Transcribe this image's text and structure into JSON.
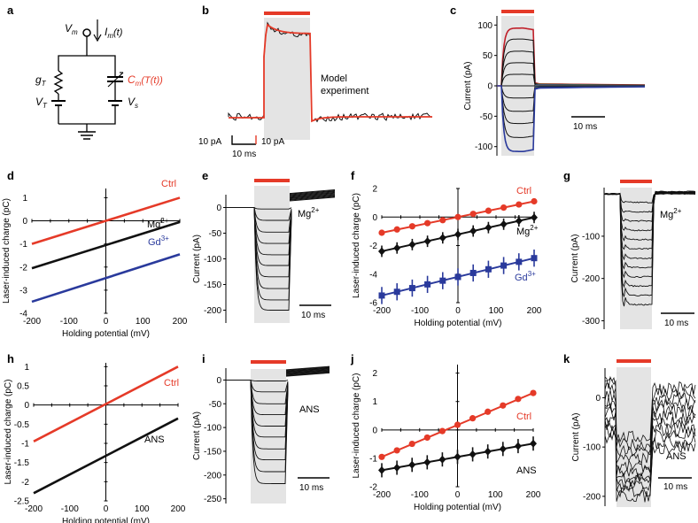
{
  "colors": {
    "ctrl": "#e53a28",
    "mg": "#111111",
    "gd": "#2a3a9c",
    "model": "#e53a28",
    "experiment": "#111111",
    "shade": "#e4e4e4",
    "laser_bar": "#e53a28"
  },
  "panels": {
    "a": {
      "label": "a",
      "Vm_main": "V",
      "Vm_sub": "m",
      "Im_main": "I",
      "Im_sub": "m",
      "Im_arg": "(t)",
      "gT_main": "g",
      "gT_sub": "T",
      "Cm_main": "C",
      "Cm_sub": "m",
      "Cm_arg": "(T(t))",
      "VT_main": "V",
      "VT_sub": "T",
      "Vs_main": "V",
      "Vs_sub": "s"
    },
    "b": {
      "label": "b",
      "legend_model": "Model",
      "legend_experiment": "experiment",
      "scale_black": "10 pA",
      "scale_red": "10 pA",
      "scale_time": "10 ms"
    },
    "c": {
      "label": "c",
      "scale_time": "10 ms"
    },
    "d": {
      "label": "d",
      "tag_ctrl": "Ctrl",
      "tag_mg": "Mg",
      "tag_mg_sup": "2+",
      "tag_gd": "Gd",
      "tag_gd_sup": "3+"
    },
    "e": {
      "label": "e",
      "tag": "Mg",
      "tag_sup": "2+",
      "scale_time": "10 ms"
    },
    "f": {
      "label": "f",
      "tag_ctrl": "Ctrl",
      "tag_mg": "Mg",
      "tag_mg_sup": "2+",
      "tag_gd": "Gd",
      "tag_gd_sup": "3+"
    },
    "g": {
      "label": "g",
      "tag": "Mg",
      "tag_sup": "2+",
      "scale_time": "10 ms"
    },
    "h": {
      "label": "h",
      "tag_ctrl": "Ctrl",
      "tag_ans": "ANS"
    },
    "i": {
      "label": "i",
      "tag": "ANS",
      "scale_time": "10 ms"
    },
    "j": {
      "label": "j",
      "tag_ctrl": "Ctrl",
      "tag_ans": "ANS"
    },
    "k": {
      "label": "k",
      "tag": "ANS",
      "scale_time": "10 ms"
    }
  },
  "chart_data": [
    {
      "id": "c",
      "type": "line",
      "ylabel": "Current (pA)",
      "yticks": [
        100,
        50,
        0,
        -50,
        -100
      ],
      "ylim": [
        -115,
        115
      ],
      "plateau_levels": [
        95,
        77,
        57,
        38,
        19,
        0,
        -20,
        -42,
        -62,
        -85,
        -108
      ],
      "series_colors": {
        "top": "#c0202a",
        "bottom": "#2a3a9c"
      }
    },
    {
      "id": "d",
      "type": "line",
      "xlabel": "Holding potential (mV)",
      "ylabel": "Laser-induced charge (pC)",
      "xticks": [
        -200,
        -100,
        0,
        100,
        200
      ],
      "yticks": [
        1,
        0,
        -1,
        -2,
        -3,
        -4
      ],
      "xlim": [
        -200,
        200
      ],
      "ylim": [
        -4,
        1.4
      ],
      "series": [
        {
          "name": "Ctrl",
          "x": [
            -200,
            200
          ],
          "y": [
            -1.0,
            1.0
          ]
        },
        {
          "name": "Mg2+",
          "x": [
            -200,
            200
          ],
          "y": [
            -2.05,
            -0.05
          ]
        },
        {
          "name": "Gd3+",
          "x": [
            -200,
            200
          ],
          "y": [
            -3.5,
            -1.45
          ]
        }
      ]
    },
    {
      "id": "e",
      "type": "line",
      "ylabel": "Current (pA)",
      "yticks": [
        0,
        -50,
        -100,
        -150,
        -200
      ],
      "ylim": [
        -225,
        25
      ],
      "plateau_levels": [
        -3,
        -25,
        -48,
        -70,
        -92,
        -113,
        -135,
        -158,
        -180,
        -200
      ]
    },
    {
      "id": "f",
      "type": "scatter",
      "xlabel": "Holding potential (mV)",
      "ylabel": "Laser-induced charge (pC)",
      "xticks": [
        -200,
        -100,
        0,
        100,
        200
      ],
      "yticks": [
        2,
        0,
        -2,
        -4,
        -6
      ],
      "xlim": [
        -200,
        200
      ],
      "ylim": [
        -6,
        2
      ],
      "x": [
        -200,
        -160,
        -120,
        -80,
        -40,
        0,
        40,
        80,
        120,
        160,
        200
      ],
      "series": [
        {
          "name": "Ctrl",
          "y": [
            -1.1,
            -0.87,
            -0.65,
            -0.43,
            -0.22,
            0.0,
            0.22,
            0.44,
            0.66,
            0.88,
            1.1
          ],
          "err": 0.1
        },
        {
          "name": "Mg2+",
          "y": [
            -2.4,
            -2.17,
            -1.93,
            -1.7,
            -1.46,
            -1.22,
            -0.98,
            -0.74,
            -0.5,
            -0.27,
            -0.03
          ],
          "err": 0.4
        },
        {
          "name": "Gd3+",
          "y": [
            -5.5,
            -5.24,
            -4.98,
            -4.72,
            -4.46,
            -4.2,
            -3.92,
            -3.66,
            -3.4,
            -3.14,
            -2.88
          ],
          "err": 0.6
        }
      ]
    },
    {
      "id": "g",
      "type": "line",
      "ylabel": "Current (pA)",
      "yticks": [
        -100,
        -200,
        -300
      ],
      "ylim": [
        -320,
        15
      ],
      "plateau_levels": [
        -20,
        -42,
        -64,
        -86,
        -108,
        -130,
        -152,
        -174,
        -196,
        -218,
        -240,
        -262
      ]
    },
    {
      "id": "h",
      "type": "line",
      "xlabel": "Holding potential (mV)",
      "ylabel": "Laser-induced charge (pC)",
      "xticks": [
        -200,
        -100,
        0,
        100,
        200
      ],
      "yticks": [
        1,
        0.5,
        0,
        -0.5,
        -1,
        -1.5,
        -2,
        -2.5
      ],
      "xlim": [
        -200,
        200
      ],
      "ylim": [
        -2.5,
        1.1
      ],
      "series": [
        {
          "name": "Ctrl",
          "x": [
            -200,
            200
          ],
          "y": [
            -0.95,
            1.0
          ]
        },
        {
          "name": "ANS",
          "x": [
            -200,
            200
          ],
          "y": [
            -2.3,
            -0.35
          ]
        }
      ]
    },
    {
      "id": "i",
      "type": "line",
      "ylabel": "Current (pA)",
      "yticks": [
        0,
        -50,
        -100,
        -150,
        -200,
        -250
      ],
      "ylim": [
        -260,
        25
      ],
      "plateau_levels": [
        -2,
        -25,
        -50,
        -73,
        -97,
        -120,
        -145,
        -168,
        -193,
        -218
      ]
    },
    {
      "id": "j",
      "type": "scatter",
      "xlabel": "Holding potential (mV)",
      "ylabel": "Laser-induced charge (pC)",
      "xticks": [
        -200,
        -100,
        0,
        100,
        200
      ],
      "yticks": [
        2,
        1,
        0,
        -1,
        -2
      ],
      "xlim": [
        -200,
        200
      ],
      "ylim": [
        -2,
        2.3
      ],
      "x": [
        -200,
        -160,
        -120,
        -80,
        -40,
        0,
        40,
        80,
        120,
        160,
        200
      ],
      "series": [
        {
          "name": "Ctrl",
          "y": [
            -0.95,
            -0.72,
            -0.49,
            -0.27,
            -0.04,
            0.18,
            0.41,
            0.64,
            0.86,
            1.09,
            1.3
          ],
          "err": 0.06
        },
        {
          "name": "ANS",
          "y": [
            -1.42,
            -1.33,
            -1.23,
            -1.14,
            -1.04,
            -0.95,
            -0.86,
            -0.76,
            -0.67,
            -0.57,
            -0.48
          ],
          "err": 0.25
        }
      ]
    },
    {
      "id": "k",
      "type": "line",
      "ylabel": "Current (pA)",
      "yticks": [
        0,
        -100,
        -200
      ],
      "ylim": [
        -220,
        60
      ],
      "plateau_levels": [
        -80,
        -95,
        -110,
        -125,
        -140,
        -150,
        -160,
        -170,
        -180,
        -190,
        -200
      ]
    }
  ]
}
